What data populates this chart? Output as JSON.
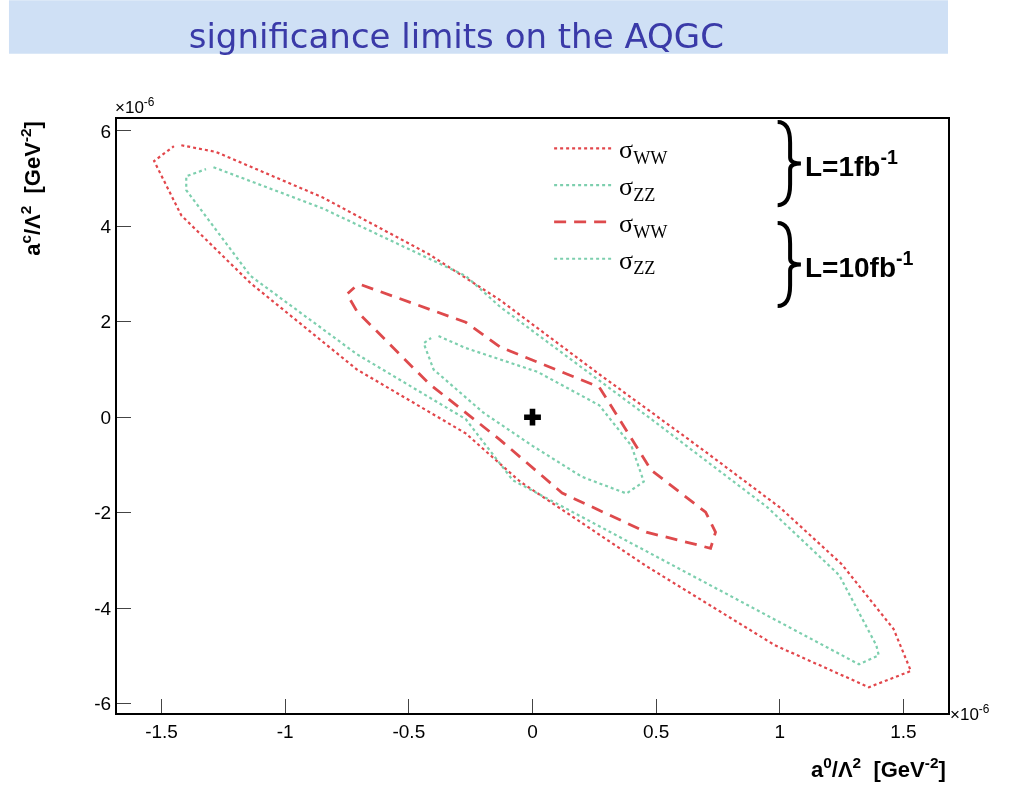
{
  "chart_data": {
    "type": "line",
    "title": "significance limits on the AQGC",
    "xlabel": "a$^{0}$/Λ$^{2}$  [GeV$^{-2}$]",
    "ylabel": "a$^{c}$/Λ$^{2}$  [GeV$^{-2}$]",
    "xlim": [
      -1.68,
      1.68
    ],
    "xticks": [
      -1.5,
      -1,
      -0.5,
      0,
      0.5,
      1,
      1.5
    ],
    "ylim": [
      -6.2,
      6.25
    ],
    "yticks": [
      -6,
      -4,
      -2,
      0,
      2,
      4,
      6
    ],
    "grid": false,
    "legend": "top right",
    "marker": "none",
    "annotations": [
      "×10$^{-6}$",
      "×10$^{-6}$",
      "L=1fb$^{-1}$",
      "L=10fb$^{-1}$"
    ],
    "series": [
      {
        "name": "σ$_{WW}$",
        "color": "#e2464b",
        "line_style": "dotted",
        "x": [
          -1.42,
          -1.28,
          -0.85,
          -0.42,
          -0.13,
          0.27,
          0.68,
          1.0,
          1.25,
          1.46,
          1.53,
          1.36,
          0.98,
          0.46,
          -0.05,
          -0.27,
          -0.71,
          -1.14,
          -1.42,
          -1.53,
          -1.45
        ],
        "values": [
          5.7,
          5.56,
          4.61,
          3.42,
          2.45,
          0.9,
          -0.65,
          -1.89,
          -3.08,
          -4.44,
          -5.32,
          -5.66,
          -4.78,
          -3.12,
          -1.35,
          -0.34,
          1.0,
          2.81,
          4.23,
          5.37,
          5.68
        ]
      },
      {
        "name": "σ$_{ZZ}$",
        "color": "#7dcfae",
        "line_style": "dotted",
        "x": [
          -1.29,
          -0.85,
          -0.27,
          -0.13,
          0.48,
          0.95,
          1.24,
          1.39,
          1.4,
          1.32,
          0.62,
          -0.08,
          -0.27,
          -0.71,
          -1.14,
          -1.4,
          -1.4,
          -1.32
        ],
        "values": [
          5.24,
          4.38,
          2.96,
          2.31,
          -0.04,
          -1.89,
          -3.31,
          -4.78,
          -4.99,
          -5.18,
          -3.25,
          -1.32,
          -0.04,
          1.32,
          2.96,
          4.76,
          5.05,
          5.2
        ]
      },
      {
        "name": "σ$_{WW}$",
        "color": "#de4a4c",
        "line_style": "dashed",
        "x": [
          -0.69,
          -0.27,
          -0.13,
          0.27,
          0.48,
          0.7,
          0.74,
          0.72,
          0.67,
          0.46,
          0.12,
          -0.13,
          -0.42,
          -0.71,
          -0.75,
          -0.72
        ],
        "values": [
          2.77,
          1.99,
          1.47,
          0.63,
          -1.11,
          -1.99,
          -2.41,
          -2.75,
          -2.68,
          -2.41,
          -1.59,
          -0.48,
          0.71,
          2.22,
          2.58,
          2.72
        ]
      },
      {
        "name": "σ$_{ZZ}$",
        "color": "#7dcfae",
        "line_style": "dotted",
        "x": [
          -0.38,
          -0.27,
          0.02,
          0.27,
          0.4,
          0.45,
          0.38,
          0.2,
          0.0,
          -0.2,
          -0.4,
          -0.44,
          -0.41
        ],
        "values": [
          1.7,
          1.45,
          0.95,
          0.25,
          -0.6,
          -1.35,
          -1.6,
          -1.25,
          -0.6,
          0.1,
          1.0,
          1.55,
          1.66
        ]
      },
      {
        "type": "scatter",
        "marker": "cross",
        "color": "#000000",
        "x": [
          0
        ],
        "values": [
          0
        ]
      }
    ]
  }
}
